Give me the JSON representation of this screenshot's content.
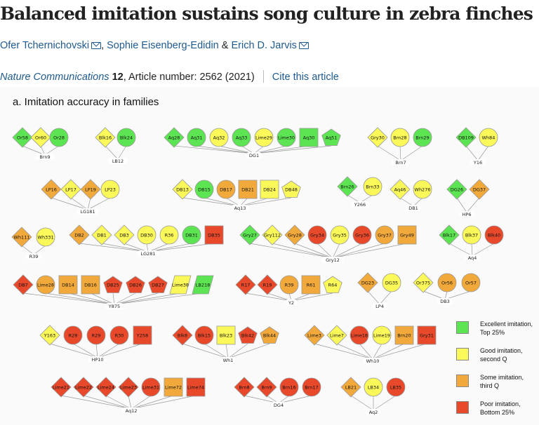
{
  "header": {
    "title": "Balanced imitation sustains song culture in zebra finches",
    "authors": [
      "Ofer Tchernichovski",
      "Sophie Eisenberg-Edidin",
      "Erich D. Jarvis"
    ],
    "author_separators": [
      ", ",
      " & "
    ],
    "journal": "Nature Communications",
    "volume": "12",
    "article": ", Article number: 2562 (2021)",
    "cite_link": "Cite this article"
  },
  "figure": {
    "title": "a. Imitation accuracy in families",
    "colors": {
      "excellent": "#5de452",
      "good": "#fbf85a",
      "some": "#f2a93b",
      "poor": "#e8492b"
    },
    "legend": [
      {
        "level": "excellent",
        "line1": "Excellent imitation,",
        "line2": "Top 25%"
      },
      {
        "level": "good",
        "line1": "Good imitation,",
        "line2": "second Q"
      },
      {
        "level": "some",
        "line1": "Some imitation,",
        "line2": "third Q"
      },
      {
        "level": "poor",
        "line1": "Poor imitation,",
        "line2": "Bottom 25%"
      }
    ],
    "families": [
      {
        "tutor": "Brn9",
        "birds": [
          [
            "Or58",
            "diamond",
            "excellent"
          ],
          [
            "Or60",
            "diamond",
            "good"
          ],
          [
            "Or28",
            "circle",
            "excellent"
          ]
        ]
      },
      {
        "tutor": "LB12",
        "birds": [
          [
            "Blk16",
            "diamond",
            "good"
          ],
          [
            "Blk24",
            "circle",
            "excellent"
          ]
        ]
      },
      {
        "tutor": "DG1",
        "birds": [
          [
            "Aq28",
            "diamond",
            "excellent"
          ],
          [
            "Aq31",
            "circle",
            "excellent"
          ],
          [
            "Aq32",
            "circle",
            "good"
          ],
          [
            "Aq33",
            "circle",
            "excellent"
          ],
          [
            "Lime29",
            "circle",
            "good"
          ],
          [
            "Lime30",
            "circle",
            "excellent"
          ],
          [
            "Aq30",
            "square",
            "excellent"
          ],
          [
            "Aq51",
            "pentagon",
            "excellent"
          ]
        ]
      },
      {
        "tutor": "Brn7",
        "birds": [
          [
            "Gry30",
            "diamond",
            "good"
          ],
          [
            "Brn28",
            "circle",
            "good"
          ],
          [
            "Brn29",
            "circle",
            "excellent"
          ]
        ]
      },
      {
        "tutor": "Y16",
        "birds": [
          [
            "DB109",
            "diamond",
            "excellent"
          ],
          [
            "Wh84",
            "circle",
            "good"
          ]
        ]
      },
      {
        "tutor": "LG181",
        "birds": [
          [
            "LP16",
            "diamond",
            "some"
          ],
          [
            "LP17",
            "diamond",
            "good"
          ],
          [
            "LP19",
            "diamond",
            "some"
          ],
          [
            "LP23",
            "circle",
            "good"
          ]
        ]
      },
      {
        "tutor": "Aq13",
        "birds": [
          [
            "DB13",
            "diamond",
            "good"
          ],
          [
            "DB15",
            "circle",
            "excellent"
          ],
          [
            "DB17",
            "circle",
            "some"
          ],
          [
            "DB21",
            "square",
            "some"
          ],
          [
            "DB24",
            "square",
            "good"
          ],
          [
            "DB48",
            "pentagon",
            "good"
          ]
        ]
      },
      {
        "tutor": "Y266",
        "birds": [
          [
            "Brn26",
            "diamond",
            "excellent"
          ],
          [
            "Brn33",
            "circle",
            "good"
          ]
        ]
      },
      {
        "tutor": "DB1",
        "birds": [
          [
            "Aq46",
            "diamond",
            "good"
          ],
          [
            "Wh276",
            "circle",
            "good"
          ]
        ]
      },
      {
        "tutor": "HP6",
        "birds": [
          [
            "DG26",
            "diamond",
            "excellent"
          ],
          [
            "DG37",
            "diamond",
            "some"
          ]
        ]
      },
      {
        "tutor": "R39",
        "birds": [
          [
            "Wh111",
            "diamond",
            "some"
          ],
          [
            "Wh331",
            "circle",
            "good"
          ]
        ]
      },
      {
        "tutor": "LG281",
        "birds": [
          [
            "DB2",
            "diamond",
            "some"
          ],
          [
            "DB1",
            "diamond",
            "good"
          ],
          [
            "DB3",
            "diamond",
            "good"
          ],
          [
            "DB30",
            "circle",
            "good"
          ],
          [
            "R36",
            "circle",
            "good"
          ],
          [
            "DB31",
            "circle",
            "excellent"
          ],
          [
            "DB35",
            "square",
            "poor"
          ]
        ]
      },
      {
        "tutor": "Gry12",
        "birds": [
          [
            "Gry27",
            "diamond",
            "excellent"
          ],
          [
            "Gry112",
            "diamond",
            "good"
          ],
          [
            "Gry28",
            "diamond",
            "some"
          ],
          [
            "Gry34",
            "circle",
            "poor"
          ],
          [
            "Gry35",
            "circle",
            "good"
          ],
          [
            "Gry36",
            "circle",
            "poor"
          ],
          [
            "Gry37",
            "circle",
            "some"
          ],
          [
            "Gry49",
            "square",
            "some"
          ]
        ]
      },
      {
        "tutor": "Aq4",
        "birds": [
          [
            "Blk17",
            "diamond",
            "excellent"
          ],
          [
            "Blk37",
            "circle",
            "good"
          ],
          [
            "Blk40",
            "circle",
            "poor"
          ]
        ]
      },
      {
        "tutor": "Y875",
        "birds": [
          [
            "DB7",
            "diamond",
            "poor"
          ],
          [
            "Lime28",
            "circle",
            "some"
          ],
          [
            "DB14",
            "square",
            "some"
          ],
          [
            "DB16",
            "square",
            "some"
          ],
          [
            "DB25",
            "pentagon",
            "poor"
          ],
          [
            "DB26",
            "pentagon",
            "poor"
          ],
          [
            "DB27",
            "pentagon",
            "poor"
          ],
          [
            "Lime38",
            "parallelogram",
            "good"
          ],
          [
            "LB218",
            "parallelogram",
            "excellent"
          ]
        ]
      },
      {
        "tutor": "Y2",
        "birds": [
          [
            "R17",
            "diamond",
            "poor"
          ],
          [
            "R19",
            "diamond",
            "poor"
          ],
          [
            "R39",
            "circle",
            "some"
          ],
          [
            "R61",
            "square",
            "some"
          ],
          [
            "R64",
            "pentagon",
            "good"
          ]
        ]
      },
      {
        "tutor": "LP4",
        "birds": [
          [
            "DG23",
            "diamond",
            "some"
          ],
          [
            "DG35",
            "circle",
            "good"
          ]
        ]
      },
      {
        "tutor": "DB3",
        "birds": [
          [
            "Or375",
            "diamond",
            "good"
          ],
          [
            "Or56",
            "circle",
            "some"
          ],
          [
            "Or57",
            "circle",
            "some"
          ]
        ]
      },
      {
        "tutor": "HP10",
        "birds": [
          [
            "Y163",
            "diamond",
            "good"
          ],
          [
            "R28",
            "circle",
            "poor"
          ],
          [
            "R29",
            "circle",
            "poor"
          ],
          [
            "R30",
            "circle",
            "poor"
          ],
          [
            "Y258",
            "square",
            "poor"
          ]
        ]
      },
      {
        "tutor": "Wh1",
        "birds": [
          [
            "Blk8",
            "diamond",
            "poor"
          ],
          [
            "Blk15",
            "circle",
            "poor"
          ],
          [
            "Blk23",
            "square",
            "good"
          ],
          [
            "Blk42",
            "pentagon",
            "poor"
          ],
          [
            "Blk44",
            "pentagon",
            "some"
          ]
        ]
      },
      {
        "tutor": "Wh10",
        "birds": [
          [
            "Lime3",
            "diamond",
            "some"
          ],
          [
            "Lime7",
            "diamond",
            "good"
          ],
          [
            "Lime18",
            "circle",
            "poor"
          ],
          [
            "Lime19",
            "circle",
            "good"
          ],
          [
            "Brn20",
            "square",
            "some"
          ],
          [
            "Gry31",
            "square",
            "poor"
          ]
        ]
      },
      {
        "tutor": "Aq12",
        "birds": [
          [
            "Lime21",
            "diamond",
            "poor"
          ],
          [
            "Lime22",
            "diamond",
            "poor"
          ],
          [
            "Lime24",
            "diamond",
            "poor"
          ],
          [
            "Lime23",
            "diamond",
            "poor"
          ],
          [
            "Lime31",
            "circle",
            "poor"
          ],
          [
            "Lime72",
            "square",
            "some"
          ],
          [
            "Lime74",
            "square",
            "poor"
          ]
        ]
      },
      {
        "tutor": "DG4",
        "birds": [
          [
            "Brn8",
            "diamond",
            "poor"
          ],
          [
            "Brn9",
            "diamond",
            "poor"
          ],
          [
            "Brn16",
            "circle",
            "poor"
          ],
          [
            "Brn17",
            "circle",
            "poor"
          ]
        ]
      },
      {
        "tutor": "Aq2",
        "birds": [
          [
            "LB21",
            "diamond",
            "some"
          ],
          [
            "LB34",
            "circle",
            "good"
          ],
          [
            "LB35",
            "circle",
            "poor"
          ]
        ]
      }
    ]
  }
}
